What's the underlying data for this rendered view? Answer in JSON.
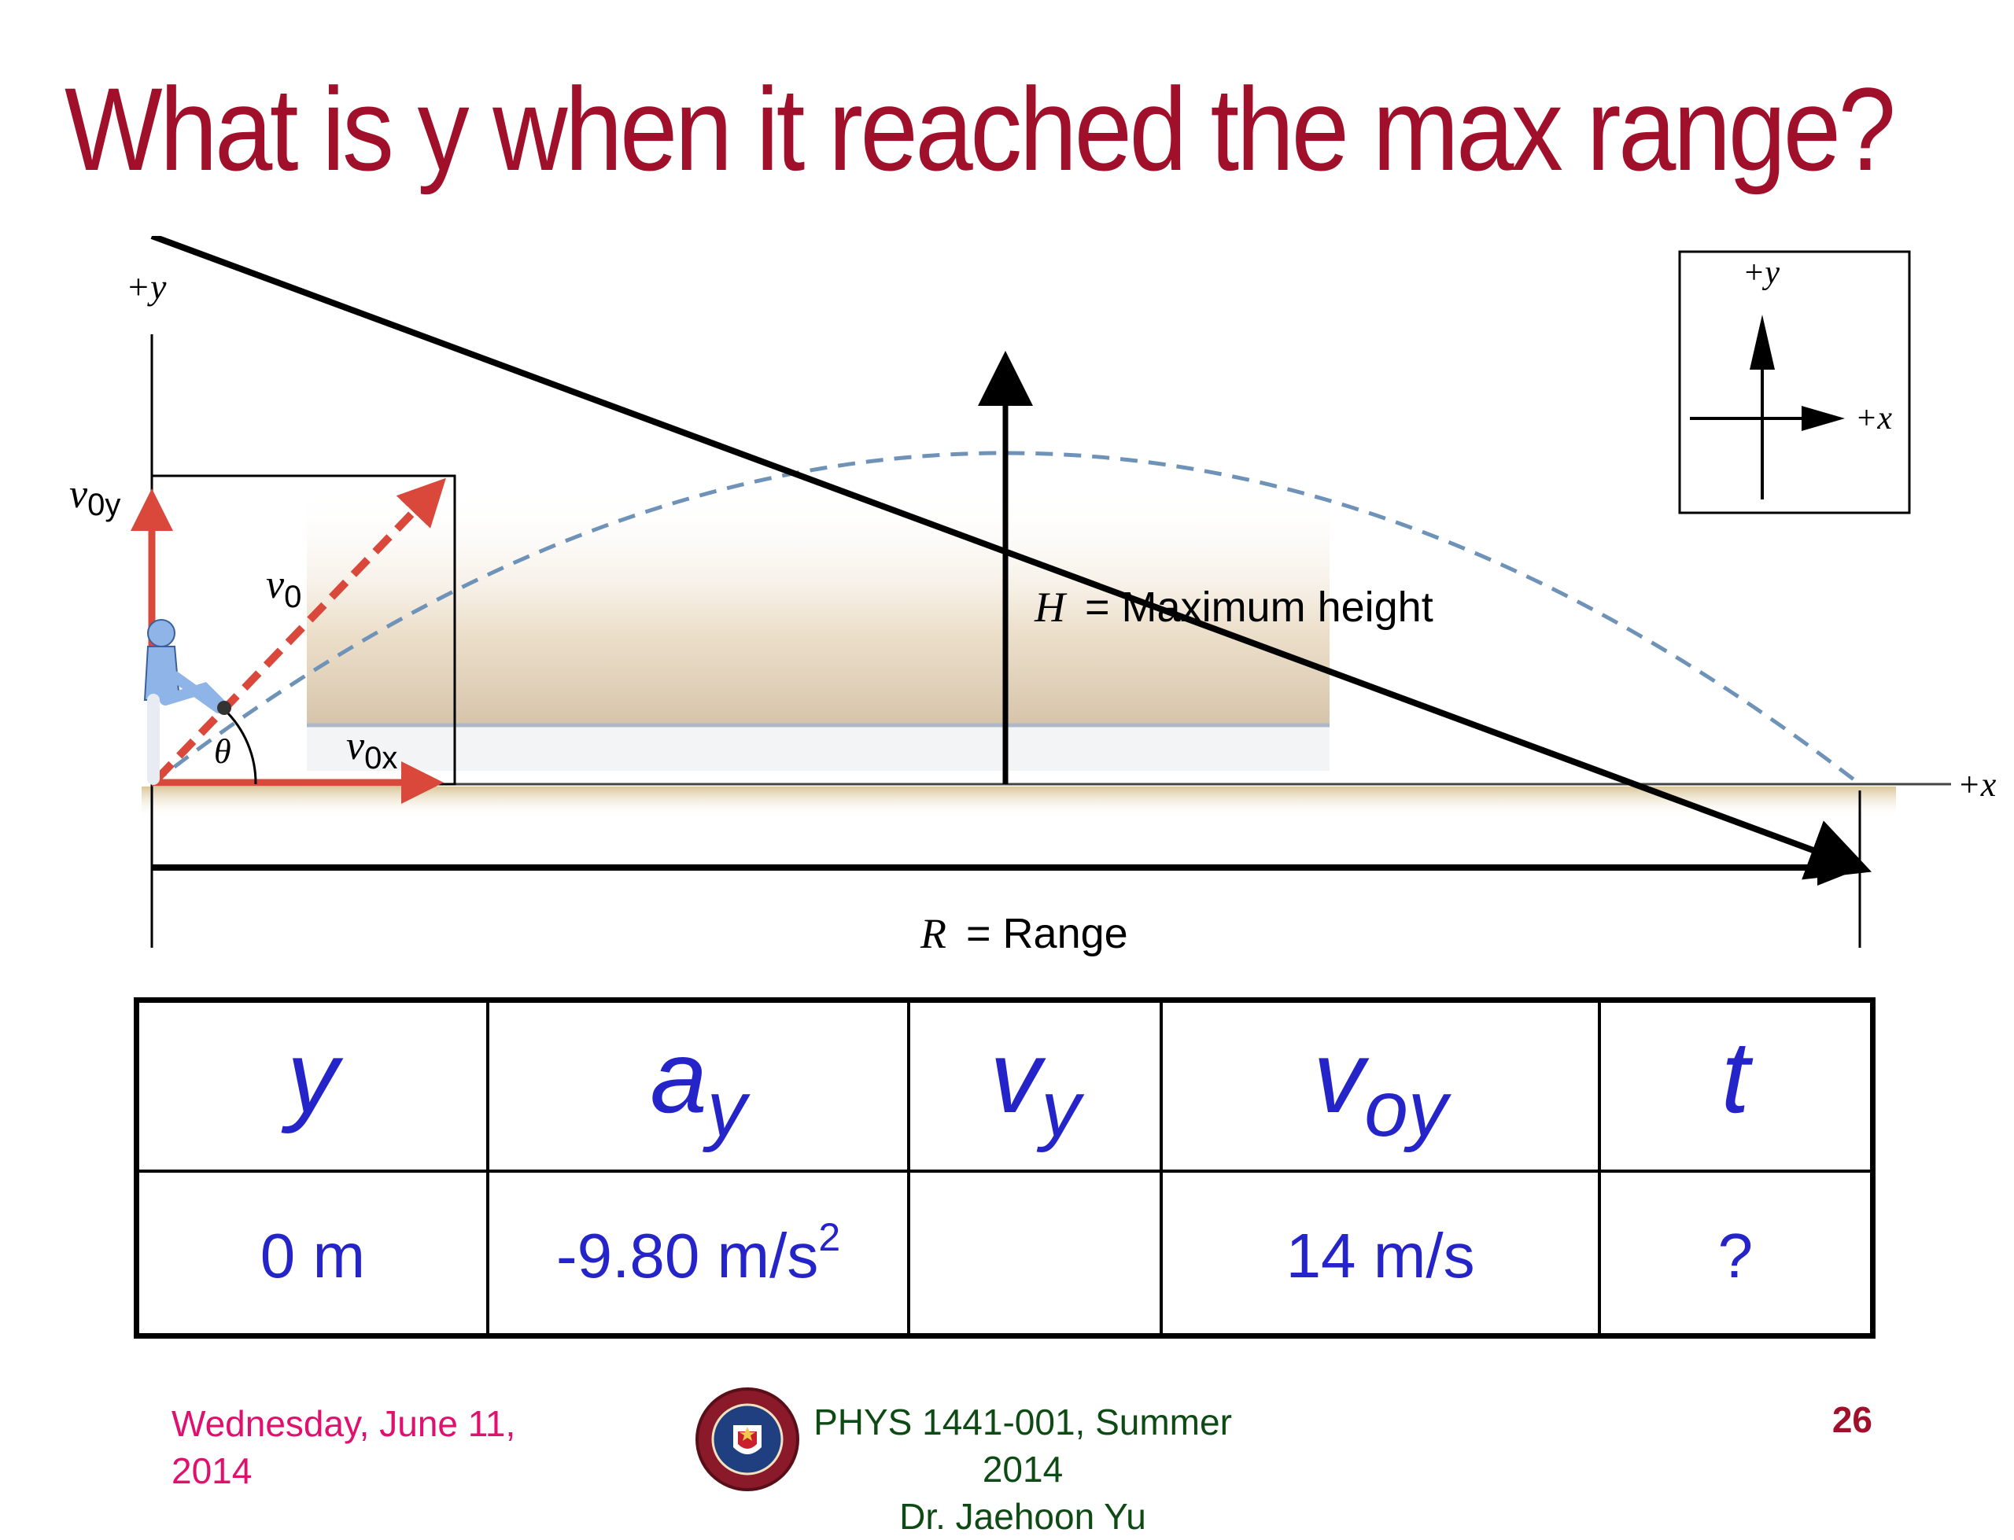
{
  "slide": {
    "title": "What is y when it reached the max range?"
  },
  "figure": {
    "axis_y_label": "+y",
    "axis_x_label": "+x",
    "v0y_label": "v",
    "v0y_sub": "0y",
    "v0_label": "v",
    "v0_sub": "0",
    "v0x_label": "v",
    "v0x_sub": "0x",
    "theta_label": "θ",
    "height_var": "H",
    "height_text": "= Maximum height",
    "range_var": "R",
    "range_text": "= Range",
    "inset_y_label": "+y",
    "inset_x_label": "+x"
  },
  "table": {
    "headers": [
      {
        "main": "y",
        "sub": ""
      },
      {
        "main": "a",
        "sub": "y"
      },
      {
        "main": "v",
        "sub": "y"
      },
      {
        "main": "v",
        "sub": "oy"
      },
      {
        "main": "t",
        "sub": ""
      }
    ],
    "values": [
      {
        "text": "0 m",
        "sup": ""
      },
      {
        "text": "-9.80 m/s",
        "sup": "2"
      },
      {
        "text": "",
        "sup": ""
      },
      {
        "text": "14 m/s",
        "sup": ""
      },
      {
        "text": "?",
        "sup": ""
      }
    ]
  },
  "footer": {
    "date": "Wednesday, June 11, 2014",
    "course_line1": "PHYS 1441-001, Summer 2014",
    "course_line2": "Dr. Jaehoon Yu",
    "page": "26"
  },
  "colors": {
    "title": "#a0102a",
    "table_text": "#2424c8",
    "date": "#e0106e",
    "course": "#0e4a14",
    "vector_red": "#d9483b",
    "trajectory": "#6f93b8"
  }
}
